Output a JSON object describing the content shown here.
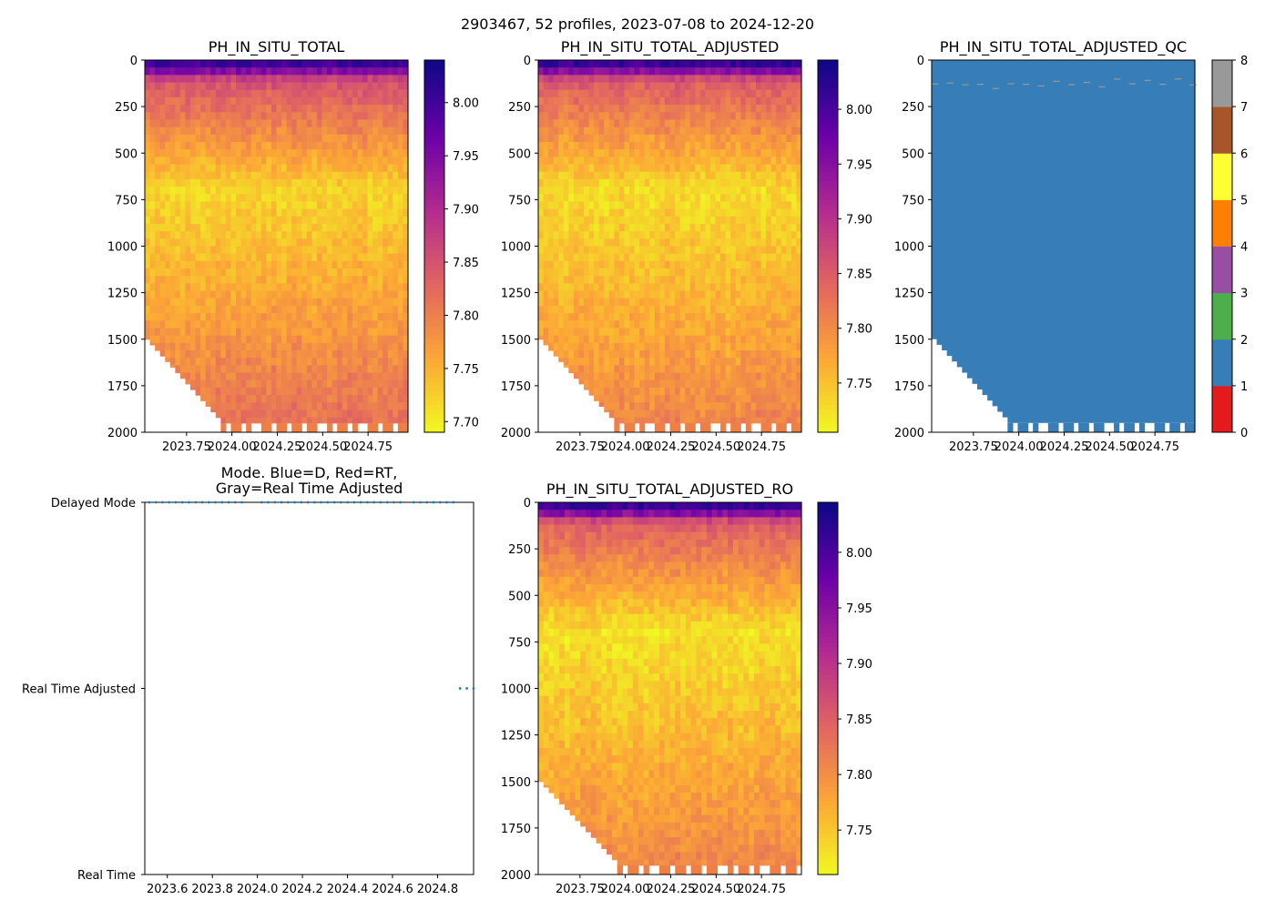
{
  "suptitle": "2903467, 52 profiles, 2023-07-08 to 2024-12-20",
  "colors": {
    "plasma": [
      "#f0f921",
      "#fca636",
      "#e16462",
      "#b12a90",
      "#6a00a8",
      "#0d0887"
    ],
    "qc": [
      "#e41a1c",
      "#377eb8",
      "#4daf4a",
      "#984ea3",
      "#ff7f00",
      "#ffff33",
      "#a65628",
      "#f781bf",
      "#999999"
    ],
    "mode_marker": "#1f77b4",
    "missing_bottom": "#f07f45"
  },
  "chart_data": [
    {
      "name": "ph-in-situ-total",
      "type": "heatmap",
      "title": "PH_IN_SITU_TOTAL",
      "x_range": [
        2023.52,
        2024.97
      ],
      "x_ticks": [
        2023.75,
        2024.0,
        2024.25,
        2024.5,
        2024.75
      ],
      "x_tick_labels": [
        "2023.75",
        "2024.00",
        "2024.25",
        "2024.50",
        "2024.75"
      ],
      "y_range": [
        0,
        2000
      ],
      "y_ticks": [
        0,
        250,
        500,
        750,
        1000,
        1250,
        1500,
        1750,
        2000
      ],
      "y_tick_labels": [
        "0",
        "250",
        "500",
        "750",
        "1000",
        "1250",
        "1500",
        "1750",
        "2000"
      ],
      "colorbar": {
        "range": [
          7.69,
          8.04
        ],
        "ticks": [
          7.7,
          7.75,
          7.8,
          7.85,
          7.9,
          7.95,
          8.0
        ],
        "tick_labels": [
          "7.70",
          "7.75",
          "7.80",
          "7.85",
          "7.90",
          "7.95",
          "8.00"
        ]
      },
      "profiles": 52,
      "surface_ph": 8.02,
      "minimum_ph": 7.72,
      "deep_ph": 7.82
    },
    {
      "name": "ph-in-situ-total-adjusted",
      "type": "heatmap",
      "title": "PH_IN_SITU_TOTAL_ADJUSTED",
      "x_range": [
        2023.52,
        2024.97
      ],
      "x_ticks": [
        2023.75,
        2024.0,
        2024.25,
        2024.5,
        2024.75
      ],
      "x_tick_labels": [
        "2023.75",
        "2024.00",
        "2024.25",
        "2024.50",
        "2024.75"
      ],
      "y_range": [
        0,
        2000
      ],
      "y_ticks": [
        0,
        250,
        500,
        750,
        1000,
        1250,
        1500,
        1750,
        2000
      ],
      "y_tick_labels": [
        "0",
        "250",
        "500",
        "750",
        "1000",
        "1250",
        "1500",
        "1750",
        "2000"
      ],
      "colorbar": {
        "range": [
          7.705,
          8.045
        ],
        "ticks": [
          7.75,
          7.8,
          7.85,
          7.9,
          7.95,
          8.0
        ],
        "tick_labels": [
          "7.75",
          "7.80",
          "7.85",
          "7.90",
          "7.95",
          "8.00"
        ]
      },
      "profiles": 52,
      "surface_ph": 8.03,
      "minimum_ph": 7.73,
      "deep_ph": 7.81
    },
    {
      "name": "ph-in-situ-total-adjusted-qc",
      "type": "heatmap",
      "title": "PH_IN_SITU_TOTAL_ADJUSTED_QC",
      "x_range": [
        2023.52,
        2024.97
      ],
      "x_ticks": [
        2023.75,
        2024.0,
        2024.25,
        2024.5,
        2024.75
      ],
      "x_tick_labels": [
        "2023.75",
        "2024.00",
        "2024.25",
        "2024.50",
        "2024.75"
      ],
      "y_range": [
        0,
        2000
      ],
      "y_ticks": [
        0,
        250,
        500,
        750,
        1000,
        1250,
        1500,
        1750,
        2000
      ],
      "y_tick_labels": [
        "0",
        "250",
        "500",
        "750",
        "1000",
        "1250",
        "1500",
        "1750",
        "2000"
      ],
      "colorbar": {
        "range": [
          0,
          8
        ],
        "ticks": [
          0,
          1,
          2,
          3,
          4,
          5,
          6,
          7,
          8
        ],
        "tick_labels": [
          "0",
          "1",
          "2",
          "3",
          "4",
          "5",
          "6",
          "7",
          "8"
        ]
      },
      "profiles": 52,
      "dominant_qc_flag": 1,
      "minor_qc_flag": 8,
      "minor_qc_depth": 120
    },
    {
      "name": "data-mode",
      "type": "scatter",
      "title_lines": [
        "Mode. Blue=D, Red=RT,",
        "Gray=Real Time Adjusted"
      ],
      "x_range": [
        2023.5,
        2024.96
      ],
      "x_ticks": [
        2023.6,
        2023.8,
        2024.0,
        2024.2,
        2024.4,
        2024.6,
        2024.8
      ],
      "x_tick_labels": [
        "2023.6",
        "2023.8",
        "2024.0",
        "2024.2",
        "2024.4",
        "2024.6",
        "2024.8"
      ],
      "y_categories": [
        "Real Time",
        "Real Time Adjusted",
        "Delayed Mode"
      ],
      "series": [
        {
          "name": "Delayed Mode",
          "level": 2,
          "x_start": 2023.52,
          "x_end": 2024.87,
          "count": 47,
          "gaps": [
            [
              2023.96,
              2023.99
            ],
            [
              2024.66,
              2024.69
            ]
          ]
        },
        {
          "name": "Real Time Adjusted",
          "level": 1,
          "x_start": 2024.9,
          "x_end": 2024.96,
          "count": 3
        }
      ]
    },
    {
      "name": "ph-in-situ-total-adjusted-ro",
      "type": "heatmap",
      "title": "PH_IN_SITU_TOTAL_ADJUSTED_RO",
      "x_range": [
        2023.52,
        2024.97
      ],
      "x_ticks": [
        2023.75,
        2024.0,
        2024.25,
        2024.5,
        2024.75
      ],
      "x_tick_labels": [
        "2023.75",
        "2024.00",
        "2024.25",
        "2024.50",
        "2024.75"
      ],
      "y_range": [
        0,
        2000
      ],
      "y_ticks": [
        0,
        250,
        500,
        750,
        1000,
        1250,
        1500,
        1750,
        2000
      ],
      "y_tick_labels": [
        "0",
        "250",
        "500",
        "750",
        "1000",
        "1250",
        "1500",
        "1750",
        "2000"
      ],
      "colorbar": {
        "range": [
          7.71,
          8.045
        ],
        "ticks": [
          7.75,
          7.8,
          7.85,
          7.9,
          7.95,
          8.0
        ],
        "tick_labels": [
          "7.75",
          "7.80",
          "7.85",
          "7.90",
          "7.95",
          "8.00"
        ]
      },
      "profiles": 50,
      "surface_ph": 8.03,
      "minimum_ph": 7.73,
      "deep_ph": 7.81
    }
  ]
}
